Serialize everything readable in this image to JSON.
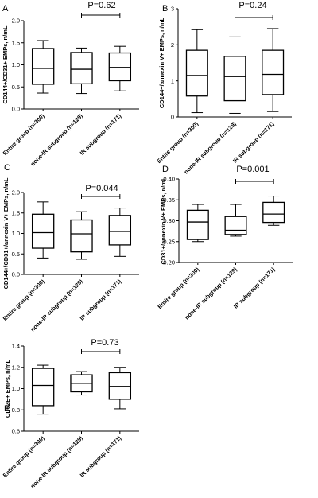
{
  "chart_data": [
    {
      "panel": "A",
      "type": "box",
      "ylabel": "CD144+/CD31+ EMPs, n/mL",
      "ylim": [
        0,
        2.0
      ],
      "yticks": [
        "0.0",
        "0.5",
        "1.0",
        "1.5",
        "2.0"
      ],
      "categories": [
        "Entire group (n=300)",
        "none-IR subgroup (n=129)",
        "IR subgroup (n=171)"
      ],
      "boxes": [
        {
          "min": 0.36,
          "q1": 0.56,
          "median": 0.92,
          "q3": 1.37,
          "max": 1.55
        },
        {
          "min": 0.35,
          "q1": 0.57,
          "median": 0.9,
          "q3": 1.28,
          "max": 1.38
        },
        {
          "min": 0.41,
          "q1": 0.64,
          "median": 0.94,
          "q3": 1.27,
          "max": 1.42
        }
      ],
      "p_value": "P=0.62"
    },
    {
      "panel": "B",
      "type": "box",
      "ylabel": "CD144+/annexin V+ EMPs, n/mL",
      "ylim": [
        0,
        3
      ],
      "yticks": [
        "0",
        "1",
        "2",
        "3"
      ],
      "categories": [
        "Entire group (n=300)",
        "none-IR subgroup (n=129)",
        "IR subgroup (n=171)"
      ],
      "boxes": [
        {
          "min": 0.12,
          "q1": 0.58,
          "median": 1.15,
          "q3": 1.85,
          "max": 2.42
        },
        {
          "min": 0.1,
          "q1": 0.45,
          "median": 1.12,
          "q3": 1.68,
          "max": 2.22
        },
        {
          "min": 0.15,
          "q1": 0.62,
          "median": 1.18,
          "q3": 1.85,
          "max": 2.45
        }
      ],
      "p_value": "P=0.24"
    },
    {
      "panel": "C",
      "type": "box",
      "ylabel": "CD144+/CD31+/annexin V+ EMPs, n/mL",
      "ylim": [
        0,
        2.0
      ],
      "yticks": [
        "0.0",
        "0.5",
        "1.0",
        "1.5",
        "2.0"
      ],
      "categories": [
        "Entire group (n=300)",
        "none-IR subgroup (n=129)",
        "IR subgroup (n=171)"
      ],
      "boxes": [
        {
          "min": 0.4,
          "q1": 0.64,
          "median": 1.02,
          "q3": 1.47,
          "max": 1.77
        },
        {
          "min": 0.37,
          "q1": 0.55,
          "median": 0.99,
          "q3": 1.33,
          "max": 1.53
        },
        {
          "min": 0.44,
          "q1": 0.72,
          "median": 1.05,
          "q3": 1.44,
          "max": 1.62
        }
      ],
      "p_value": "P=0.044"
    },
    {
      "panel": "D",
      "type": "box",
      "ylabel": "CD31+/annexin V+ EMPs, n/mL",
      "ylim": [
        0.2,
        0.4
      ],
      "yticks": [
        "0.20",
        "0.25",
        "0.30",
        "0.35",
        "0.40"
      ],
      "categories": [
        "Entire group (n=300)",
        "none-IR subgroup (n=129)",
        "IR subgroup (n=171)"
      ],
      "boxes": [
        {
          "min": 0.25,
          "q1": 0.255,
          "median": 0.297,
          "q3": 0.325,
          "max": 0.339
        },
        {
          "min": 0.263,
          "q1": 0.267,
          "median": 0.277,
          "q3": 0.31,
          "max": 0.339
        },
        {
          "min": 0.289,
          "q1": 0.296,
          "median": 0.316,
          "q3": 0.344,
          "max": 0.359
        }
      ],
      "p_value": "P=0.001"
    },
    {
      "panel": "E",
      "type": "box",
      "ylabel": "CD62E+ EMPs, n/mL",
      "ylim": [
        0.6,
        1.4
      ],
      "yticks": [
        "0.6",
        "0.8",
        "1.0",
        "1.2",
        "1.4"
      ],
      "categories": [
        "Entire group (n=300)",
        "none-IR subgroup (n=129)",
        "IR subgroup (n=171)"
      ],
      "boxes": [
        {
          "min": 0.76,
          "q1": 0.84,
          "median": 1.03,
          "q3": 1.19,
          "max": 1.22
        },
        {
          "min": 0.94,
          "q1": 0.97,
          "median": 1.05,
          "q3": 1.13,
          "max": 1.16
        },
        {
          "min": 0.81,
          "q1": 0.9,
          "median": 1.02,
          "q3": 1.15,
          "max": 1.2
        }
      ],
      "p_value": "P=0.73"
    }
  ]
}
